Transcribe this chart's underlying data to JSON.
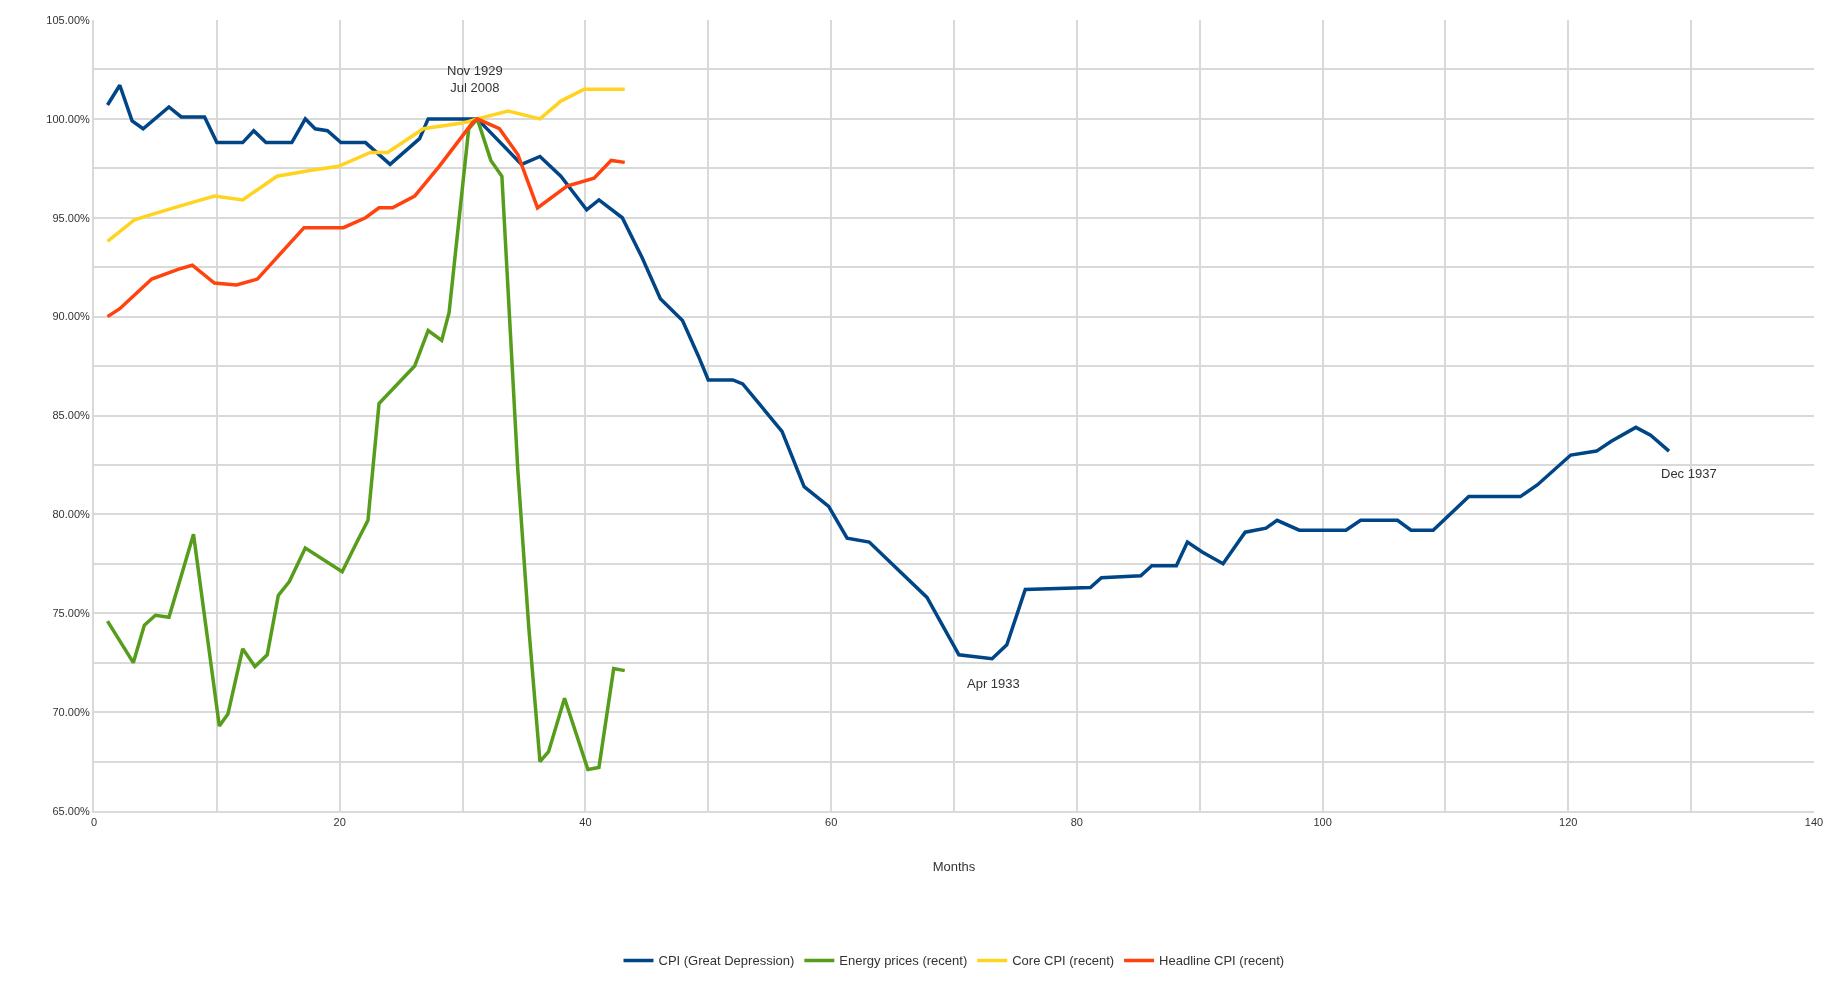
{
  "chart_data": {
    "type": "line",
    "xlabel": "Months",
    "xlim": [
      0,
      140
    ],
    "xticks": [
      0,
      {
        "value": 10,
        "label": null
      },
      20,
      {
        "value": 30,
        "label": null
      },
      40,
      {
        "value": 50,
        "label": null
      },
      60,
      {
        "value": 70,
        "label": null
      },
      80,
      {
        "value": 90,
        "label": null
      },
      100,
      {
        "value": 110,
        "label": null
      },
      120,
      {
        "value": 130,
        "label": null
      },
      140
    ],
    "ylim": [
      65,
      105
    ],
    "yticks": [
      {
        "value": 65,
        "label": "65.00%"
      },
      {
        "value": 67.5,
        "label": null
      },
      {
        "value": 70,
        "label": "70.00%"
      },
      {
        "value": 72.5,
        "label": null
      },
      {
        "value": 75,
        "label": "75.00%"
      },
      {
        "value": 77.5,
        "label": null
      },
      {
        "value": 80,
        "label": "80.00%"
      },
      {
        "value": 82.5,
        "label": null
      },
      {
        "value": 85,
        "label": "85.00%"
      },
      {
        "value": 87.5,
        "label": null
      },
      {
        "value": 90,
        "label": "90.00%"
      },
      {
        "value": 92.5,
        "label": null
      },
      {
        "value": 95,
        "label": "95.00%"
      },
      {
        "value": 97.5,
        "label": null
      },
      {
        "value": 100,
        "label": "100.00%"
      },
      {
        "value": 102.5,
        "label": null
      },
      {
        "value": 105,
        "label": "105.00%"
      }
    ],
    "grid": true,
    "legend": "bottom",
    "marker": "none",
    "line_style": "solid",
    "series": [
      {
        "name": "CPI (Great Depression)",
        "color": "#004586",
        "x": [
          1.1,
          2.1,
          3.1,
          4,
          6.1,
          7.1,
          9,
          10,
          12.1,
          13,
          14,
          16.1,
          17.2,
          18,
          19,
          20.1,
          22.1,
          24.1,
          26.5,
          27.2,
          31.2,
          34.8,
          36.3,
          38,
          40.1,
          41.1,
          43,
          44.6,
          46.1,
          47.9,
          49.2,
          50,
          52,
          52.8,
          56,
          57.8,
          59.8,
          61.3,
          63.1,
          67.8,
          70.4,
          73.1,
          74.3,
          75.8,
          81.1,
          82,
          85.2,
          86.1,
          88.1,
          89,
          90.2,
          91.9,
          93.7,
          95.4,
          96.3,
          98.1,
          101.9,
          103.1,
          106.1,
          107.2,
          109,
          111.9,
          116.1,
          117.5,
          120.2,
          122.3,
          123.5,
          125.5,
          126.7,
          128.2
        ],
        "values": [
          100.7,
          101.7,
          99.9,
          99.5,
          100.6,
          100.1,
          100.1,
          98.8,
          98.8,
          99.4,
          98.8,
          98.8,
          100,
          99.5,
          99.4,
          98.8,
          98.8,
          97.7,
          99,
          100,
          100,
          97.7,
          98.1,
          97.1,
          95.4,
          95.9,
          95,
          93,
          90.9,
          89.8,
          88,
          86.8,
          86.8,
          86.6,
          84.2,
          81.4,
          80.4,
          78.8,
          78.6,
          75.8,
          72.9,
          72.7,
          73.4,
          76.2,
          76.3,
          76.8,
          76.9,
          77.4,
          77.4,
          78.6,
          78.1,
          77.5,
          79.1,
          79.3,
          79.7,
          79.2,
          79.2,
          79.7,
          79.7,
          79.2,
          79.2,
          80.9,
          80.9,
          81.5,
          83,
          83.2,
          83.7,
          84.4,
          84,
          83.2
        ]
      },
      {
        "name": "Energy prices (recent)",
        "color": "#579d1c",
        "x": [
          1.1,
          3.2,
          4.1,
          5,
          6.1,
          7.2,
          8.1,
          10.2,
          10.9,
          12.1,
          13.1,
          14.1,
          15,
          15.9,
          17.2,
          20.2,
          21.4,
          22.3,
          23.2,
          26.1,
          27.2,
          28.3,
          28.9,
          30.5,
          31.2,
          32.3,
          33.2,
          34.5,
          35.4,
          36.3,
          37,
          38.3,
          40.2,
          41.1,
          42.3,
          43.2
        ],
        "values": [
          74.6,
          72.5,
          74.4,
          74.9,
          74.8,
          77.1,
          79,
          69.3,
          69.9,
          73.2,
          72.3,
          72.9,
          75.9,
          76.6,
          78.3,
          77.1,
          78.6,
          79.7,
          85.6,
          87.5,
          89.3,
          88.8,
          90.2,
          99.5,
          100,
          97.9,
          97.1,
          82.2,
          74.2,
          67.5,
          68,
          70.7,
          67.1,
          67.2,
          72.2,
          72.1
        ]
      },
      {
        "name": "Core CPI (recent)",
        "color": "#ffd320",
        "x": [
          1.1,
          3.3,
          5.4,
          7.6,
          9.8,
          12.1,
          14.9,
          17.7,
          19.9,
          22.5,
          23.9,
          26.8,
          30.1,
          31.2,
          33.7,
          36.3,
          38,
          39.9,
          43.2
        ],
        "values": [
          93.8,
          94.9,
          95.3,
          95.7,
          96.1,
          95.9,
          97.1,
          97.4,
          97.6,
          98.3,
          98.3,
          99.5,
          99.8,
          100,
          100.4,
          100,
          100.9,
          101.5,
          101.5
        ]
      },
      {
        "name": "Headline CPI (recent)",
        "color": "#ff420e",
        "x": [
          1.1,
          2.1,
          4.7,
          6.9,
          8,
          9.8,
          11.6,
          13.3,
          14.9,
          17.1,
          20.3,
          22.1,
          23.2,
          24.3,
          26.1,
          28.1,
          30.8,
          31.2,
          33,
          34.5,
          36.1,
          38.5,
          40.7,
          42.1,
          43.2
        ],
        "values": [
          90,
          90.4,
          91.9,
          92.4,
          92.6,
          91.7,
          91.6,
          91.9,
          93,
          94.5,
          94.5,
          95,
          95.5,
          95.5,
          96.1,
          97.6,
          99.8,
          100,
          99.5,
          98.2,
          95.5,
          96.6,
          97,
          97.9,
          97.8
        ]
      }
    ],
    "annotations": [
      {
        "text": "Nov 1929\nJul 2008",
        "x": 31,
        "y": 100
      },
      {
        "text": "Apr 1933",
        "x": 72,
        "y": 72.7
      },
      {
        "text": "Dec 1937",
        "x": 128.2,
        "y": 83.2
      }
    ]
  }
}
